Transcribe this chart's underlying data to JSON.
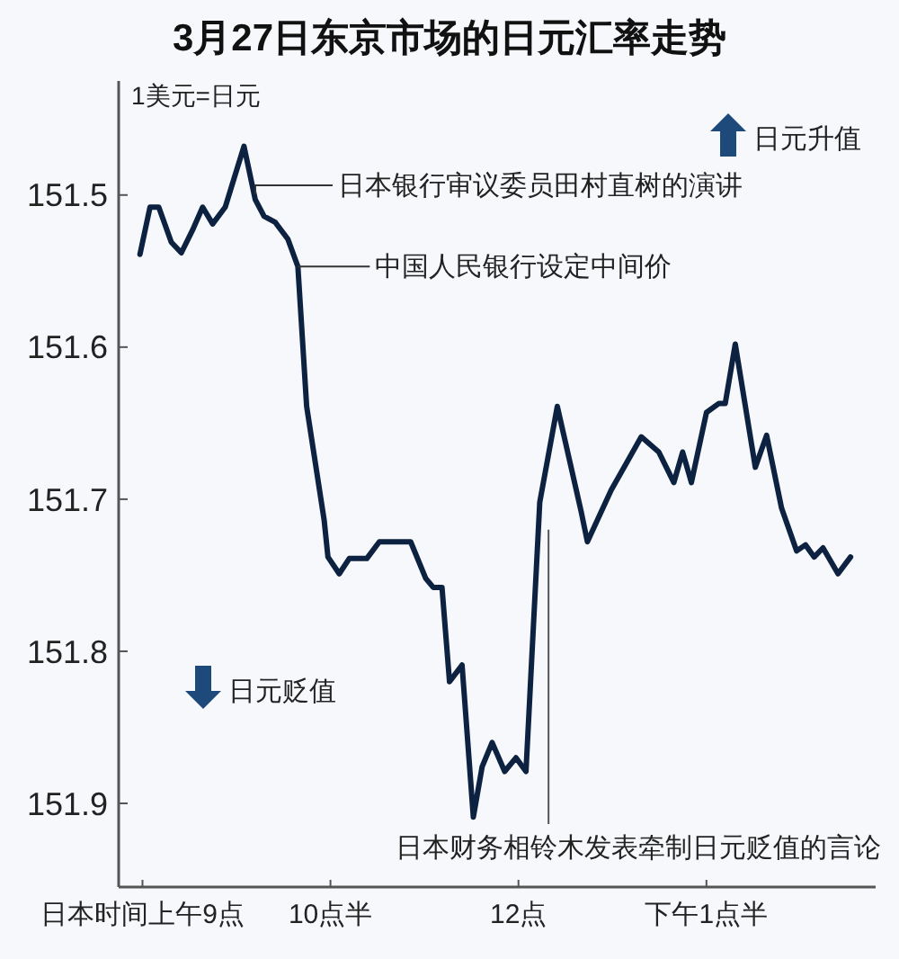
{
  "chart_data": {
    "type": "line",
    "title": "3月27日东京市场的日元汇率走势",
    "ylabel": "1美元=日元",
    "xlim": [
      8.81,
      14.85
    ],
    "ylim": [
      151.955,
      151.425
    ],
    "xticks": [
      {
        "value": 9,
        "label": "日本时间上午9点"
      },
      {
        "value": 10.5,
        "label": "10点半"
      },
      {
        "value": 12,
        "label": "12点"
      },
      {
        "value": 13.5,
        "label": "下午1点半"
      }
    ],
    "yticks": [
      151.5,
      151.6,
      151.7,
      151.8,
      151.9
    ],
    "grid": false,
    "marker": "none",
    "line_style": "solid",
    "series": [
      {
        "color": "#0d2240",
        "x": [
          8.98,
          9.06,
          9.13,
          9.23,
          9.31,
          9.4,
          9.48,
          9.56,
          9.66,
          9.81,
          9.9,
          9.97,
          10.06,
          10.16,
          10.24,
          10.31,
          10.45,
          10.48,
          10.57,
          10.65,
          10.79,
          10.89,
          11.14,
          11.26,
          11.32,
          11.39,
          11.45,
          11.55,
          11.64,
          11.71,
          11.79,
          11.89,
          11.98,
          12.06,
          12.17,
          12.31,
          12.5,
          12.55,
          12.74,
          12.98,
          13.12,
          13.24,
          13.31,
          13.38,
          13.5,
          13.6,
          13.65,
          13.73,
          13.89,
          13.98,
          14.1,
          14.22,
          14.29,
          14.36,
          14.43,
          14.55,
          14.65
        ],
        "values": [
          151.539,
          151.508,
          151.508,
          151.531,
          151.538,
          151.523,
          151.508,
          151.519,
          151.508,
          151.468,
          151.503,
          151.514,
          151.518,
          151.529,
          151.547,
          151.639,
          151.714,
          151.738,
          151.749,
          151.739,
          151.739,
          151.728,
          151.728,
          151.752,
          151.758,
          151.758,
          151.82,
          151.809,
          151.909,
          151.876,
          151.86,
          151.879,
          151.87,
          151.879,
          151.702,
          151.639,
          151.708,
          151.728,
          151.694,
          151.659,
          151.669,
          151.689,
          151.669,
          151.689,
          151.643,
          151.637,
          151.637,
          151.598,
          151.679,
          151.658,
          151.706,
          151.734,
          151.73,
          151.738,
          151.732,
          151.749,
          151.738
        ]
      }
    ],
    "annotations": [
      {
        "text": "日本银行审议委员田村直树的演讲",
        "x": 9.9,
        "y": 151.503
      },
      {
        "text": "中国人民银行设定中间价",
        "x": 10.24,
        "y": 151.547
      },
      {
        "text": "日本财务相铃木发表牵制日元贬值的言论",
        "x": 12.24,
        "y": 151.72
      },
      "日元升值",
      "日元贬值"
    ]
  }
}
